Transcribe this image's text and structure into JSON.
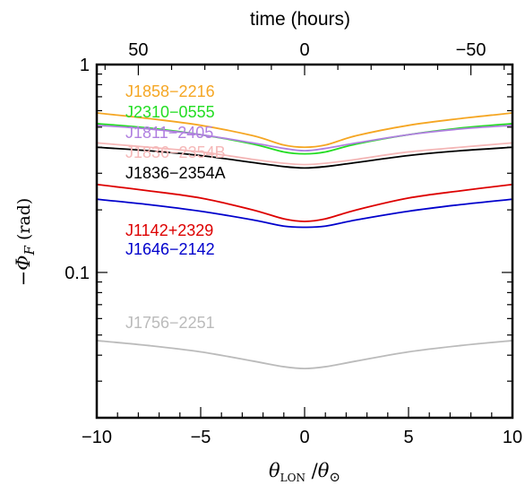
{
  "chart_data": {
    "type": "line",
    "title": "",
    "xlabel": "θLON/θ⊙",
    "ylabel": "−ΦF (rad)",
    "x_top_label": "time (hours)",
    "xlim": [
      -10,
      10
    ],
    "ylim": [
      0.02,
      1
    ],
    "yscale": "log",
    "grid": false,
    "x_ticks": [
      -10,
      -5,
      0,
      5,
      10
    ],
    "x_tick_labels": [
      "−10",
      "−5",
      "0",
      "5",
      "10"
    ],
    "x_top_ticks": [
      50,
      0,
      -50
    ],
    "x_top_tick_labels": [
      "50",
      "0",
      "−50"
    ],
    "y_ticks": [
      0.1,
      1
    ],
    "y_tick_labels": [
      "0.1",
      "1"
    ],
    "series": [
      {
        "name": "J1858−2216",
        "color": "#f5a623",
        "x": [
          -10,
          -7.5,
          -5,
          -2.5,
          -1,
          0,
          1,
          2.5,
          5,
          7.5,
          10
        ],
        "values": [
          0.585,
          0.55,
          0.51,
          0.455,
          0.41,
          0.4,
          0.41,
          0.455,
          0.51,
          0.55,
          0.585
        ]
      },
      {
        "name": "J2310−0555",
        "color": "#22dd22",
        "x": [
          -10,
          -7.5,
          -5,
          -2.5,
          -1,
          0,
          1,
          2.5,
          5,
          7.5,
          10
        ],
        "values": [
          0.52,
          0.495,
          0.46,
          0.415,
          0.38,
          0.372,
          0.38,
          0.415,
          0.46,
          0.495,
          0.52
        ]
      },
      {
        "name": "J1811−2405",
        "color": "#b07fe0",
        "x": [
          -10,
          -7.5,
          -5,
          -2.5,
          -1,
          0,
          1,
          2.5,
          5,
          7.5,
          10
        ],
        "values": [
          0.51,
          0.49,
          0.46,
          0.42,
          0.395,
          0.385,
          0.395,
          0.42,
          0.46,
          0.49,
          0.51
        ]
      },
      {
        "name": "J1836−2354B",
        "color": "#f5b8b8",
        "x": [
          -10,
          -7.5,
          -5,
          -2.5,
          -1,
          0,
          1,
          2.5,
          5,
          7.5,
          10
        ],
        "values": [
          0.42,
          0.4,
          0.38,
          0.35,
          0.335,
          0.33,
          0.335,
          0.35,
          0.38,
          0.4,
          0.42
        ]
      },
      {
        "name": "J1836−2354A",
        "color": "#000000",
        "x": [
          -10,
          -7.5,
          -5,
          -2.5,
          -1,
          0,
          1,
          2.5,
          5,
          7.5,
          10
        ],
        "values": [
          0.4,
          0.385,
          0.365,
          0.338,
          0.323,
          0.318,
          0.323,
          0.338,
          0.365,
          0.385,
          0.4
        ]
      },
      {
        "name": "J1142+2329",
        "color": "#dd0000",
        "x": [
          -10,
          -7.5,
          -5,
          -2.5,
          -1,
          0,
          1,
          2.5,
          5,
          7.5,
          10
        ],
        "values": [
          0.265,
          0.247,
          0.228,
          0.2,
          0.181,
          0.176,
          0.181,
          0.2,
          0.228,
          0.247,
          0.265
        ]
      },
      {
        "name": "J1646−2142",
        "color": "#0000cc",
        "x": [
          -10,
          -7.5,
          -5,
          -2.5,
          -1,
          0,
          1,
          2.5,
          5,
          7.5,
          10
        ],
        "values": [
          0.225,
          0.212,
          0.197,
          0.179,
          0.167,
          0.165,
          0.167,
          0.179,
          0.197,
          0.212,
          0.225
        ]
      },
      {
        "name": "J1756−2251",
        "color": "#bbbbbb",
        "x": [
          -10,
          -7.5,
          -5,
          -2.5,
          -1,
          0,
          1,
          2.5,
          5,
          7.5,
          10
        ],
        "values": [
          0.047,
          0.0445,
          0.0415,
          0.0375,
          0.0352,
          0.0345,
          0.0352,
          0.0375,
          0.0415,
          0.0445,
          0.047
        ]
      }
    ]
  }
}
